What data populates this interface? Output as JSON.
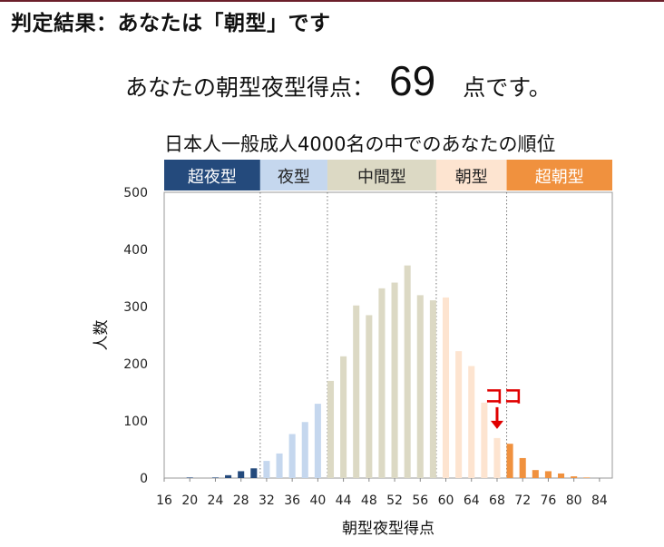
{
  "heading": "判定結果：あなたは「朝型」です",
  "score": {
    "prefix": "あなたの朝型夜型得点：",
    "value": "69",
    "suffix": "点です。"
  },
  "chart_data": {
    "type": "bar",
    "title": "日本人一般成人4000名の中でのあなたの順位",
    "xlabel": "朝型夜型得点",
    "ylabel": "人数",
    "ylim": [
      0,
      500
    ],
    "yticks": [
      0,
      100,
      200,
      300,
      400,
      500
    ],
    "xlim": [
      16,
      86
    ],
    "xticks": [
      16,
      20,
      24,
      28,
      32,
      36,
      40,
      44,
      48,
      52,
      56,
      60,
      64,
      68,
      72,
      76,
      80,
      84
    ],
    "grid": false,
    "bands": [
      {
        "label": "超夜型",
        "from": 16,
        "to": 31,
        "color": "#244a7c",
        "text_color": "#ffffff"
      },
      {
        "label": "夜型",
        "from": 31,
        "to": 41.5,
        "color": "#c5d7ee",
        "text_color": "#222222"
      },
      {
        "label": "中間型",
        "from": 41.5,
        "to": 58.5,
        "color": "#dcd9c4",
        "text_color": "#222222"
      },
      {
        "label": "朝型",
        "from": 58.5,
        "to": 69.5,
        "color": "#fde4d0",
        "text_color": "#222222"
      },
      {
        "label": "超朝型",
        "from": 69.5,
        "to": 86,
        "color": "#f0913e",
        "text_color": "#ffffff"
      }
    ],
    "dividers": [
      31,
      41.5,
      58.5,
      69.5
    ],
    "bars": [
      {
        "x": 18,
        "value": 0
      },
      {
        "x": 20,
        "value": 1
      },
      {
        "x": 22,
        "value": 0
      },
      {
        "x": 24,
        "value": 1
      },
      {
        "x": 26,
        "value": 5
      },
      {
        "x": 28,
        "value": 12
      },
      {
        "x": 30,
        "value": 17
      },
      {
        "x": 32,
        "value": 30
      },
      {
        "x": 34,
        "value": 43
      },
      {
        "x": 36,
        "value": 77
      },
      {
        "x": 38,
        "value": 98
      },
      {
        "x": 40,
        "value": 130
      },
      {
        "x": 42,
        "value": 170
      },
      {
        "x": 44,
        "value": 213
      },
      {
        "x": 46,
        "value": 302
      },
      {
        "x": 48,
        "value": 285
      },
      {
        "x": 50,
        "value": 332
      },
      {
        "x": 52,
        "value": 342
      },
      {
        "x": 54,
        "value": 372
      },
      {
        "x": 56,
        "value": 320
      },
      {
        "x": 58,
        "value": 311
      },
      {
        "x": 60,
        "value": 316
      },
      {
        "x": 62,
        "value": 222
      },
      {
        "x": 64,
        "value": 196
      },
      {
        "x": 66,
        "value": 132
      },
      {
        "x": 68,
        "value": 70
      },
      {
        "x": 70,
        "value": 60
      },
      {
        "x": 72,
        "value": 35
      },
      {
        "x": 74,
        "value": 14
      },
      {
        "x": 76,
        "value": 12
      },
      {
        "x": 78,
        "value": 8
      },
      {
        "x": 80,
        "value": 3
      },
      {
        "x": 82,
        "value": 1
      },
      {
        "x": 84,
        "value": 0
      }
    ],
    "marker": {
      "label": "ココ",
      "x": 68,
      "color": "#e00000"
    }
  }
}
